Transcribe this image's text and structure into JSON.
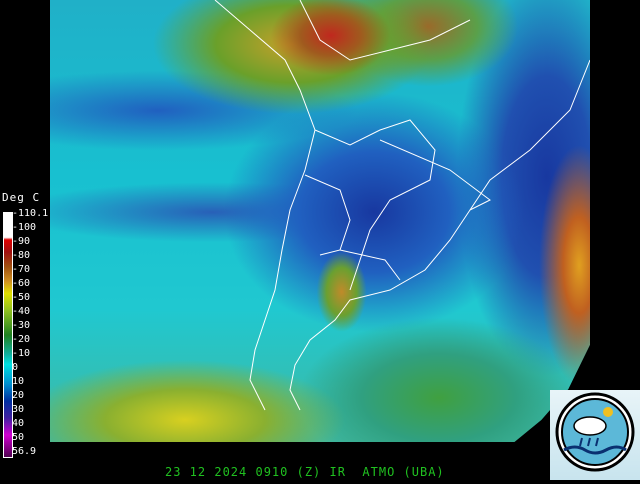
{
  "legend": {
    "title": "Deg C",
    "labels": [
      "-110.1",
      "-100",
      "-90",
      "-80",
      "-70",
      "-60",
      "-50",
      "-40",
      "-30",
      "-20",
      "-10",
      "0",
      "10",
      "20",
      "30",
      "40",
      "50",
      "56.9"
    ]
  },
  "footer": {
    "caption": "23 12 2024 0910 (Z) IR  ATMO (UBA)"
  },
  "logo": {
    "name": "ATMO UBA logo"
  }
}
